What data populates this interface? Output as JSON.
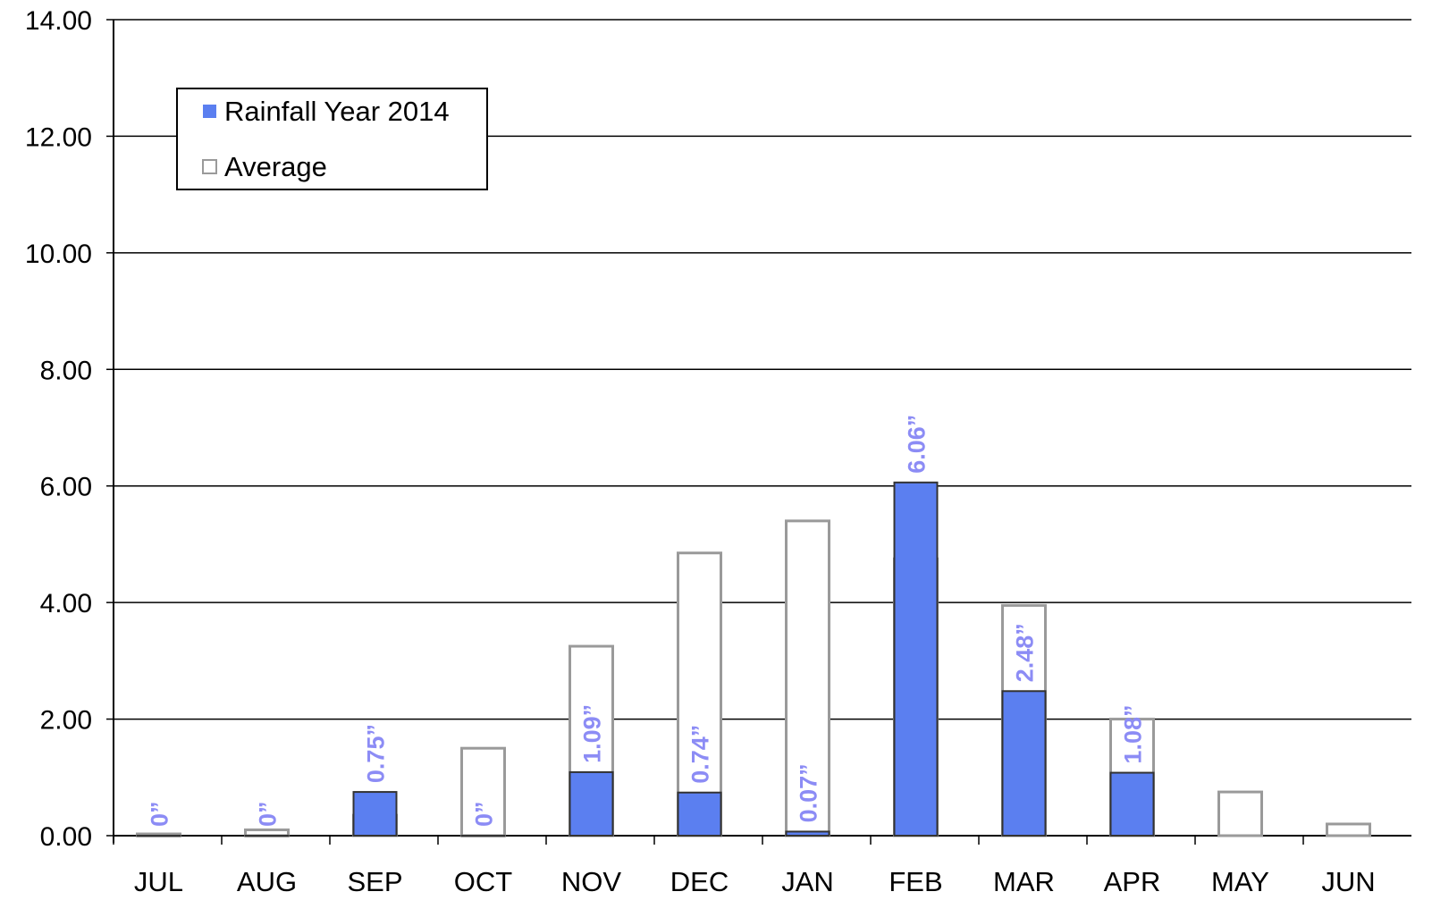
{
  "chart_data": {
    "type": "overlapped_bar",
    "categories": [
      "JUL",
      "AUG",
      "SEP",
      "OCT",
      "NOV",
      "DEC",
      "JAN",
      "FEB",
      "MAR",
      "APR",
      "MAY",
      "JUN"
    ],
    "series": [
      {
        "name": "Average",
        "color": "#ffffff",
        "edge": "#9a9a9a",
        "values": [
          0.03,
          0.1,
          0.35,
          1.5,
          3.25,
          4.85,
          5.4,
          4.75,
          3.95,
          2.0,
          0.75,
          0.2
        ]
      },
      {
        "name": "Rainfall Year 2014",
        "color": "#5b7ff0",
        "edge": "#333333",
        "values": [
          0,
          0,
          0.75,
          0,
          1.09,
          0.74,
          0.07,
          6.06,
          2.48,
          1.08,
          null,
          null
        ],
        "value_labels": [
          "0”",
          "0”",
          "0.75”",
          "0”",
          "1.09”",
          "0.74”",
          "0.07”",
          "6.06”",
          "2.48”",
          "1.08”",
          null,
          null
        ],
        "label_color": "#8c8cf5"
      }
    ],
    "ylim": [
      0,
      14
    ],
    "yticks": [
      {
        "value": 0,
        "label": "0.00"
      },
      {
        "value": 2,
        "label": "2.00"
      },
      {
        "value": 4,
        "label": "4.00"
      },
      {
        "value": 6,
        "label": "6.00"
      },
      {
        "value": 8,
        "label": "8.00"
      },
      {
        "value": 10,
        "label": "10.00"
      },
      {
        "value": 12,
        "label": "12.00"
      },
      {
        "value": 14,
        "label": "14.00"
      }
    ],
    "grid": true,
    "legend": "upper left"
  }
}
